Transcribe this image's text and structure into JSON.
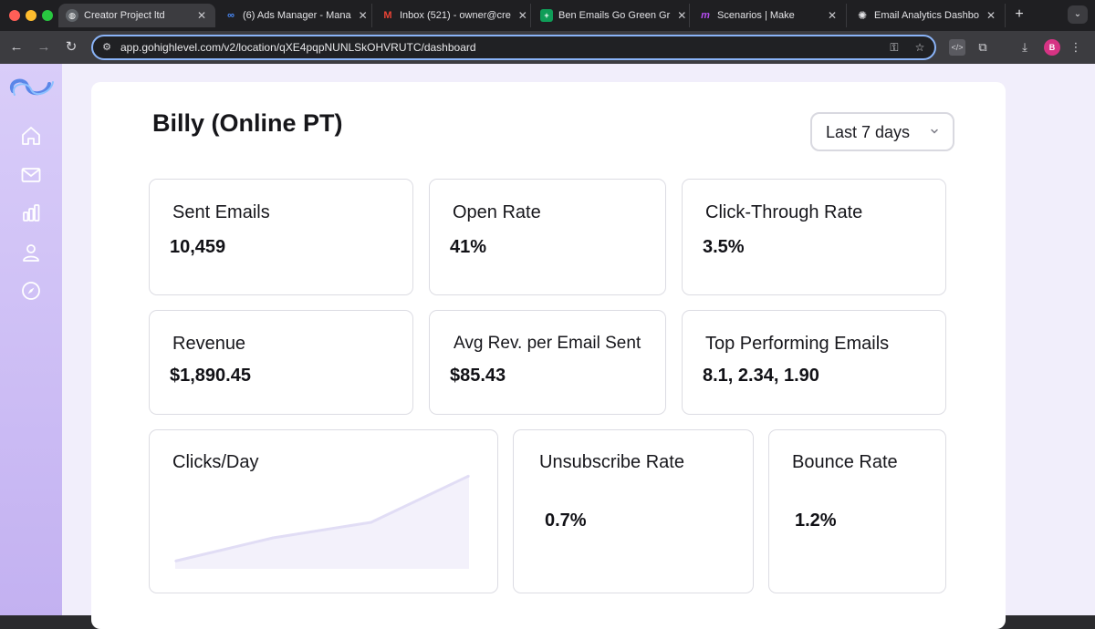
{
  "browser": {
    "tabs": [
      {
        "title": "Creator Project ltd",
        "icon": "globe-icon",
        "active": true
      },
      {
        "title": "(6) Ads Manager - Mana",
        "icon": "meta-icon",
        "active": false
      },
      {
        "title": "Inbox (521) - owner@cre",
        "icon": "gmail-icon",
        "active": false
      },
      {
        "title": "Ben Emails Go Green Gr",
        "icon": "sheets-icon",
        "active": false
      },
      {
        "title": "Scenarios | Make",
        "icon": "make-icon",
        "active": false
      },
      {
        "title": "Email Analytics Dashbo",
        "icon": "openai-icon",
        "active": false
      }
    ],
    "url": "app.gohighlevel.com/v2/location/qXE4pqpNUNLSkOHVRUTC/dashboard",
    "profile_initial": "B"
  },
  "sidebar": {
    "items": [
      {
        "name": "home-icon"
      },
      {
        "name": "mail-icon"
      },
      {
        "name": "bar-chart-icon"
      },
      {
        "name": "user-icon"
      },
      {
        "name": "compass-icon"
      }
    ]
  },
  "header": {
    "title": "Billy (Online PT)",
    "date_range": "Last 7 days"
  },
  "metrics": {
    "sent_emails": {
      "label": "Sent Emails",
      "value": "10,459"
    },
    "open_rate": {
      "label": "Open Rate",
      "value": "41%"
    },
    "ctr": {
      "label": "Click-Through Rate",
      "value": "3.5%"
    },
    "revenue": {
      "label": "Revenue",
      "value": "$1,890.45"
    },
    "avg_rev": {
      "label": "Avg Rev. per Email Sent",
      "value": "$85.43"
    },
    "top_emails": {
      "label": "Top Performing Emails",
      "value": "8.1, 2.34, 1.90"
    },
    "clicks_day": {
      "label": "Clicks/Day"
    },
    "unsubscribe": {
      "label": "Unsubscribe Rate",
      "value": "0.7%"
    },
    "bounce": {
      "label": "Bounce Rate",
      "value": "1.2%"
    }
  },
  "colors": {
    "sidebar_top": "#d9cdf9",
    "sidebar_bottom": "#c3b1f1",
    "chart_line": "#e1ddf5",
    "chart_fill": "#f3f1fb",
    "accent_url_border": "#8ab4f8"
  },
  "chart_data": {
    "type": "area",
    "x": [
      0,
      1,
      2,
      3
    ],
    "values": [
      1,
      4,
      6,
      12
    ],
    "ylim": [
      0,
      12
    ]
  }
}
